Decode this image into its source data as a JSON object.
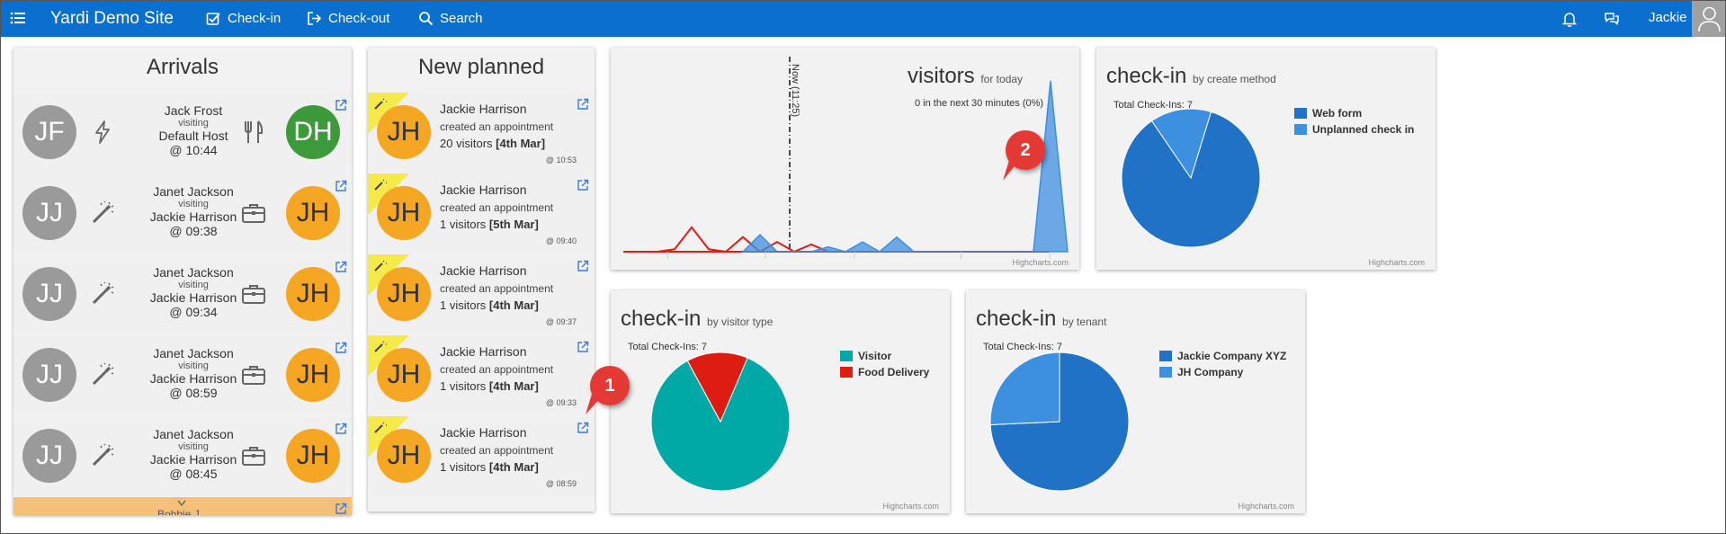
{
  "nav": {
    "brand": "Yardi Demo Site",
    "checkin": "Check-in",
    "checkout": "Check-out",
    "search": "Search",
    "user": "Jackie"
  },
  "arrivals": {
    "title": "Arrivals",
    "items": [
      {
        "initials": "JF",
        "name": "Jack Frost",
        "visiting": "visiting",
        "host": "Default Host",
        "time": "@ 10:44",
        "host_initials": "DH",
        "host_color": "green",
        "method_icon": "bolt-icon",
        "type_icon": "fork-knife-icon"
      },
      {
        "initials": "JJ",
        "name": "Janet Jackson",
        "visiting": "visiting",
        "host": "Jackie Harrison",
        "time": "@ 09:38",
        "host_initials": "JH",
        "host_color": "orange",
        "method_icon": "magic-wand-icon",
        "type_icon": "briefcase-icon"
      },
      {
        "initials": "JJ",
        "name": "Janet Jackson",
        "visiting": "visiting",
        "host": "Jackie Harrison",
        "time": "@ 09:34",
        "host_initials": "JH",
        "host_color": "orange",
        "method_icon": "magic-wand-icon",
        "type_icon": "briefcase-icon"
      },
      {
        "initials": "JJ",
        "name": "Janet Jackson",
        "visiting": "visiting",
        "host": "Jackie Harrison",
        "time": "@ 08:59",
        "host_initials": "JH",
        "host_color": "orange",
        "method_icon": "magic-wand-icon",
        "type_icon": "briefcase-icon"
      },
      {
        "initials": "JJ",
        "name": "Janet Jackson",
        "visiting": "visiting",
        "host": "Jackie Harrison",
        "time": "@ 08:45",
        "host_initials": "JH",
        "host_color": "orange",
        "method_icon": "magic-wand-icon",
        "type_icon": "briefcase-icon"
      }
    ],
    "partial_name": "Bobbie J"
  },
  "planned": {
    "title": "New planned",
    "items": [
      {
        "initials": "JH",
        "name": "Jackie Harrison",
        "action": "created an appointment",
        "count": "20 visitors",
        "date": "[4th Mar]",
        "time": "@ 10:53"
      },
      {
        "initials": "JH",
        "name": "Jackie Harrison",
        "action": "created an appointment",
        "count": "1 visitors",
        "date": "[5th Mar]",
        "time": "@ 09:40"
      },
      {
        "initials": "JH",
        "name": "Jackie Harrison",
        "action": "created an appointment",
        "count": "1 visitors",
        "date": "[4th Mar]",
        "time": "@ 09:37"
      },
      {
        "initials": "JH",
        "name": "Jackie Harrison",
        "action": "created an appointment",
        "count": "1 visitors",
        "date": "[4th Mar]",
        "time": "@ 09:33"
      },
      {
        "initials": "JH",
        "name": "Jackie Harrison",
        "action": "created an appointment",
        "count": "1 visitors",
        "date": "[4th Mar]",
        "time": "@ 08:59"
      }
    ]
  },
  "annotations": {
    "badge1": "1",
    "badge2": "2"
  },
  "credit": "Highcharts.com",
  "colors": {
    "nav": "#0b6fce",
    "web_form": "#1f72c6",
    "unplanned": "#3d8fe0",
    "visitor": "#00a9a5",
    "food": "#dd1d12",
    "tenant1": "#1f72c6",
    "tenant2": "#3d8fe0",
    "orange": "#f5a623"
  },
  "chart_data": [
    {
      "type": "area",
      "title": "visitors",
      "subtitle": "for today",
      "note": "0 in the next 30 minutes (0%)",
      "now_label": "Now (11:25)",
      "series": [
        {
          "color": "#dd1d12",
          "points": [
            [
              0,
              0
            ],
            [
              2,
              0
            ],
            [
              3,
              0.1
            ],
            [
              4,
              1
            ],
            [
              5,
              0.1
            ],
            [
              6,
              0
            ],
            [
              7,
              0.6
            ],
            [
              8,
              0
            ],
            [
              9,
              0.4
            ],
            [
              10,
              0
            ],
            [
              11,
              0.3
            ],
            [
              12,
              0
            ],
            [
              25,
              0
            ]
          ]
        },
        {
          "color": "#3d8fe0",
          "points": [
            [
              7,
              0
            ],
            [
              8,
              0.7
            ],
            [
              9,
              0
            ],
            [
              11,
              0
            ],
            [
              12,
              0.2
            ],
            [
              13,
              0
            ],
            [
              14,
              0.4
            ],
            [
              15,
              0
            ],
            [
              16,
              0.6
            ],
            [
              17,
              0
            ],
            [
              24,
              0
            ],
            [
              25,
              7
            ],
            [
              26,
              0
            ]
          ]
        }
      ]
    },
    {
      "type": "pie",
      "title": "check-in",
      "subtitle": "by create method",
      "total": "Total Check-Ins: 7",
      "slices": [
        {
          "name": "Web form",
          "value": 6,
          "color": "#1f72c6"
        },
        {
          "name": "Unplanned check in",
          "value": 1,
          "color": "#3d8fe0"
        }
      ]
    },
    {
      "type": "pie",
      "title": "check-in",
      "subtitle": "by visitor type",
      "total": "Total Check-Ins: 7",
      "slices": [
        {
          "name": "Visitor",
          "value": 6,
          "color": "#00a9a5"
        },
        {
          "name": "Food Delivery",
          "value": 1,
          "color": "#dd1d12"
        }
      ]
    },
    {
      "type": "pie",
      "title": "check-in",
      "subtitle": "by tenant",
      "total": "Total Check-Ins: 7",
      "slices": [
        {
          "name": "Jackie Company XYZ",
          "value": 5.2,
          "color": "#1f72c6"
        },
        {
          "name": "JH Company",
          "value": 1.8,
          "color": "#3d8fe0"
        }
      ]
    }
  ]
}
